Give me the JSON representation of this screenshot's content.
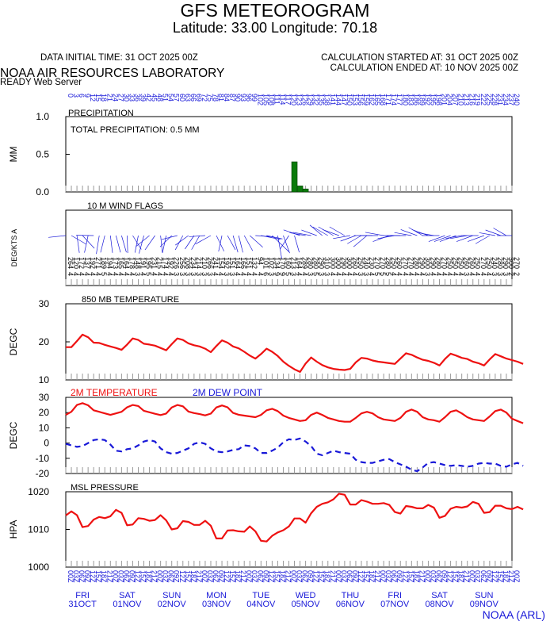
{
  "header": {
    "title": "GFS METEOROGRAM",
    "subtitle": "Latitude: 33.00 Longitude:  70.18",
    "initial_time": "DATA INITIAL TIME: 31 OCT 2025 00Z",
    "calc_started": "CALCULATION STARTED AT: 31 OCT 2025 00Z",
    "calc_ended": "CALCULATION ENDED AT: 10 NOV 2025 00Z",
    "lab": "NOAA AIR RESOURCES LABORATORY",
    "server": "READY Web Server",
    "footer": "NOAA (ARL)"
  },
  "colors": {
    "temp": "#ee1111",
    "dew": "#1818d8",
    "precip": "#0a7a0a",
    "axis": "#000000",
    "blue_text": "#1818d8"
  },
  "chart_data": [
    {
      "name": "precipitation",
      "type": "bar",
      "title": "PRECIPITATION",
      "ylabel": "MM",
      "ylim": [
        0,
        1
      ],
      "yticks": [
        "0.0",
        "0.5",
        "1.0"
      ],
      "annotation": "TOTAL PRECIPITATION:   0.5 MM",
      "forecast_hours": [
        123,
        126,
        129
      ],
      "values": [
        0.4,
        0.08,
        0.04
      ]
    },
    {
      "name": "wind",
      "type": "other",
      "title": "10 M  WIND FLAGS",
      "ylabel": "DEG/KTS  A",
      "directions": [
        264,
        120,
        172,
        137,
        192,
        271,
        189,
        194,
        173,
        165,
        164,
        178,
        148,
        191,
        195,
        231,
        215,
        174,
        192,
        226,
        256,
        208,
        234,
        214,
        210,
        266,
        241,
        154,
        192,
        151,
        164,
        166,
        151,
        132,
        94,
        101,
        102,
        134,
        170,
        160,
        213,
        164,
        289,
        280,
        280,
        290,
        310,
        300,
        300,
        290,
        300,
        260,
        250,
        240,
        230,
        270,
        270,
        280,
        250,
        260,
        270,
        270,
        280,
        290,
        300,
        290,
        280,
        270,
        250,
        250,
        250,
        260,
        260,
        250,
        270,
        250,
        240,
        280,
        290,
        300,
        270
      ],
      "speeds": [
        4,
        4,
        4,
        4,
        4,
        4,
        5,
        4,
        4,
        4,
        4,
        4,
        3,
        4,
        5,
        4,
        4,
        4,
        4,
        3,
        3,
        3,
        3,
        3,
        3,
        3,
        4,
        4,
        3,
        3,
        4,
        4,
        4,
        4,
        4,
        6,
        3,
        9,
        9,
        5,
        3,
        4,
        4,
        3,
        5,
        3,
        3,
        4,
        4,
        4,
        4,
        4,
        3,
        3,
        4,
        5,
        5,
        5,
        4,
        4,
        4,
        4,
        4,
        4,
        3,
        4,
        4,
        4,
        4,
        4,
        4,
        3,
        4,
        4,
        4,
        4,
        3,
        3,
        3,
        2,
        2
      ]
    },
    {
      "name": "temp850",
      "type": "line",
      "title": "850 MB  TEMPERATURE",
      "ylabel": "DEGC",
      "ylim": [
        10,
        30
      ],
      "yticks": [
        "10",
        "20",
        "30"
      ],
      "series": [
        {
          "values": [
            18.6,
            18.6,
            20.2,
            21.9,
            21.2,
            19.8,
            19.7,
            19.2,
            18.8,
            18.4,
            17.9,
            19.3,
            20.9,
            20.5,
            19.5,
            19.3,
            19.0,
            18.4,
            17.8,
            19.4,
            20.9,
            20.5,
            19.6,
            19.1,
            18.8,
            18.2,
            17.3,
            18.9,
            20.4,
            19.8,
            18.8,
            18.3,
            17.4,
            16.4,
            15.6,
            16.8,
            18.2,
            17.4,
            16.3,
            14.8,
            13.7,
            12.8,
            12.1,
            14.3,
            15.9,
            14.8,
            13.9,
            13.3,
            12.9,
            12.7,
            12.6,
            12.9,
            14.6,
            15.8,
            15.6,
            15.1,
            14.8,
            14.6,
            14.4,
            14.2,
            15.6,
            17.0,
            16.6,
            15.9,
            15.3,
            15.0,
            14.5,
            13.8,
            15.5,
            16.9,
            16.4,
            15.8,
            15.5,
            14.8,
            14.4,
            13.8,
            15.4,
            16.8,
            16.2,
            15.6,
            15.2,
            14.8,
            14.2
          ]
        }
      ]
    },
    {
      "name": "temp2m",
      "type": "line",
      "title": "",
      "ylabel": "DEGC",
      "ylim": [
        -20,
        30
      ],
      "yticks": [
        "-20",
        "-10",
        "0",
        "10",
        "20",
        "30"
      ],
      "series": [
        {
          "name": "2M TEMPERATURE",
          "values": [
            18.5,
            20.5,
            25.0,
            26.2,
            24.8,
            21.5,
            20.5,
            19.5,
            18.5,
            19.5,
            20.5,
            23.5,
            25.0,
            24.3,
            21.2,
            20.2,
            19.2,
            18.4,
            19.4,
            23.4,
            25.0,
            24.1,
            20.7,
            19.7,
            19.0,
            18.2,
            19.3,
            23.4,
            24.7,
            23.5,
            19.8,
            18.6,
            18.0,
            17.5,
            17.0,
            18.5,
            21.5,
            22.5,
            21.0,
            18.0,
            16.5,
            15.5,
            14.5,
            15.0,
            18.5,
            20.0,
            18.5,
            16.5,
            15.5,
            14.5,
            14.0,
            14.0,
            16.5,
            19.5,
            20.5,
            19.5,
            17.0,
            15.5,
            15.0,
            14.5,
            16.5,
            20.5,
            22.0,
            20.5,
            17.0,
            15.5,
            15.0,
            14.0,
            17.0,
            20.5,
            21.5,
            19.5,
            17.0,
            15.5,
            15.0,
            14.5,
            17.5,
            21.0,
            22.0,
            20.0,
            16.0,
            14.5,
            13.0
          ]
        },
        {
          "name": "2M  DEW POINT",
          "values": [
            -0.5,
            -1.5,
            -2.5,
            -2.0,
            0.0,
            2.0,
            2.5,
            2.0,
            -1.0,
            -5.0,
            -5.5,
            -4.0,
            -3.5,
            -1.5,
            1.0,
            2.0,
            1.0,
            -3.5,
            -6.0,
            -7.0,
            -6.5,
            -5.0,
            -3.5,
            -0.5,
            0.5,
            -0.5,
            -3.5,
            -5.5,
            -6.0,
            -5.5,
            -4.5,
            -4.0,
            -1.5,
            -2.0,
            -3.5,
            -6.5,
            -6.5,
            -5.0,
            -3.0,
            0.5,
            2.5,
            2.0,
            3.0,
            1.0,
            -2.0,
            -7.0,
            -8.0,
            -6.5,
            -5.0,
            -6.0,
            -6.5,
            -7.0,
            -11.0,
            -12.5,
            -13.0,
            -13.0,
            -12.0,
            -11.0,
            -10.5,
            -12.5,
            -14.0,
            -15.5,
            -17.5,
            -18.5,
            -16.0,
            -13.0,
            -12.5,
            -13.5,
            -14.5,
            -15.0,
            -14.5,
            -15.0,
            -15.5,
            -15.0,
            -13.5,
            -13.0,
            -13.5,
            -13.5,
            -15.0,
            -15.5,
            -14.0,
            -13.0,
            -15.0
          ]
        }
      ]
    },
    {
      "name": "mslp",
      "type": "line",
      "title": "MSL PRESSURE",
      "ylabel": "HPA",
      "ylim": [
        1000,
        1020
      ],
      "yticks": [
        "1000",
        "1010",
        "1020"
      ],
      "series": [
        {
          "values": [
            1013.7,
            1014.8,
            1013.8,
            1010.6,
            1010.9,
            1012.6,
            1013.3,
            1013.0,
            1013.5,
            1015.2,
            1014.4,
            1011.1,
            1011.3,
            1013.0,
            1012.8,
            1012.3,
            1012.5,
            1013.8,
            1012.4,
            1010.0,
            1010.3,
            1012.2,
            1012.0,
            1011.2,
            1011.2,
            1012.3,
            1011.0,
            1007.6,
            1007.6,
            1009.7,
            1009.8,
            1009.5,
            1009.4,
            1010.8,
            1009.5,
            1007.0,
            1006.8,
            1008.3,
            1009.2,
            1009.8,
            1010.8,
            1012.9,
            1012.9,
            1011.8,
            1014.3,
            1016.0,
            1016.8,
            1017.2,
            1018.0,
            1019.5,
            1019.2,
            1016.6,
            1016.6,
            1017.8,
            1017.4,
            1016.8,
            1016.8,
            1017.0,
            1016.5,
            1014.6,
            1014.2,
            1016.2,
            1016.0,
            1015.6,
            1015.6,
            1016.5,
            1015.8,
            1013.1,
            1013.6,
            1015.5,
            1016.0,
            1015.8,
            1016.1,
            1017.3,
            1016.8,
            1014.4,
            1014.6,
            1016.3,
            1016.3,
            1015.6,
            1015.4,
            1016.0,
            1015.3
          ]
        }
      ]
    }
  ],
  "x_axis": {
    "hours_top": [
      "0",
      "3",
      "6",
      "9",
      "12",
      "15",
      "18",
      "21",
      "24",
      "27",
      "30",
      "33",
      "36",
      "39",
      "42",
      "45",
      "48",
      "51",
      "54",
      "57",
      "60",
      "63",
      "66",
      "69",
      "72",
      "75",
      "78",
      "81",
      "84",
      "87",
      "90",
      "93",
      "96",
      "99",
      "102",
      "105",
      "108",
      "111",
      "114",
      "117",
      "120",
      "123",
      "126",
      "129",
      "132",
      "135",
      "138",
      "141",
      "144",
      "147",
      "150",
      "153",
      "156",
      "159",
      "162",
      "165",
      "168",
      "171",
      "174",
      "177",
      "180",
      "183",
      "186",
      "189",
      "192",
      "195",
      "198",
      "201",
      "204",
      "207",
      "210",
      "213",
      "216",
      "219",
      "222",
      "225",
      "228",
      "231",
      "234",
      "237",
      "240"
    ],
    "utc_bottom": [
      "00Z",
      "03Z",
      "06Z",
      "09Z",
      "12Z",
      "15Z",
      "18Z",
      "21Z"
    ],
    "days": [
      {
        "weekday": "FRI",
        "date": "31OCT"
      },
      {
        "weekday": "SAT",
        "date": "01NOV"
      },
      {
        "weekday": "SUN",
        "date": "02NOV"
      },
      {
        "weekday": "MON",
        "date": "03NOV"
      },
      {
        "weekday": "TUE",
        "date": "04NOV"
      },
      {
        "weekday": "WED",
        "date": "05NOV"
      },
      {
        "weekday": "THU",
        "date": "06NOV"
      },
      {
        "weekday": "FRI",
        "date": "07NOV"
      },
      {
        "weekday": "SAT",
        "date": "08NOV"
      },
      {
        "weekday": "SUN",
        "date": "09NOV"
      }
    ]
  }
}
